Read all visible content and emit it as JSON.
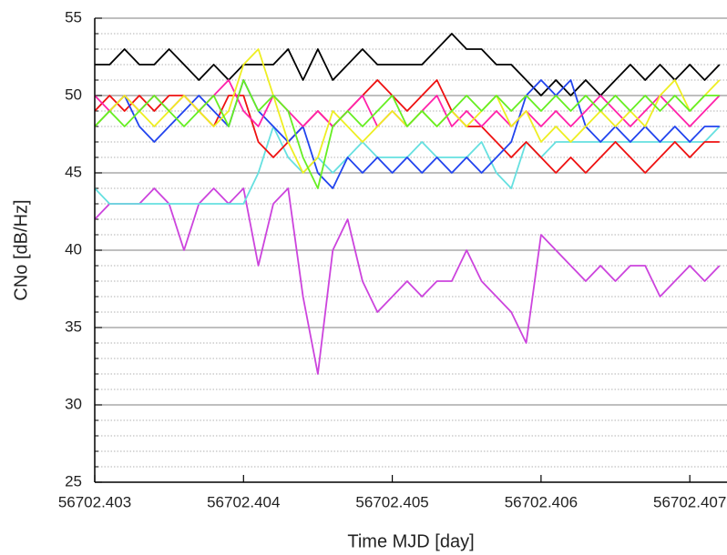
{
  "chart_data": {
    "type": "line",
    "xlabel": "Time MJD [day]",
    "ylabel": "CNo [dB/Hz]",
    "x": [
      56702.403,
      56702.4031,
      56702.4032,
      56702.4033,
      56702.4034,
      56702.4035,
      56702.4036,
      56702.4037,
      56702.4038,
      56702.4039,
      56702.404,
      56702.4041,
      56702.4042,
      56702.4043,
      56702.4044,
      56702.4045,
      56702.4046,
      56702.4047,
      56702.4048,
      56702.4049,
      56702.405,
      56702.4051,
      56702.4052,
      56702.4053,
      56702.4054,
      56702.4055,
      56702.4056,
      56702.4057,
      56702.4058,
      56702.4059,
      56702.406,
      56702.4061,
      56702.4062,
      56702.4063,
      56702.4064,
      56702.4065,
      56702.4066,
      56702.4067,
      56702.4068,
      56702.4069,
      56702.407,
      56702.4071,
      56702.4072
    ],
    "series": [
      {
        "color": "#cc44dd",
        "values": [
          42,
          43,
          43,
          43,
          44,
          43,
          40,
          43,
          44,
          43,
          44,
          39,
          43,
          44,
          37,
          32,
          40,
          42,
          38,
          36,
          37,
          38,
          37,
          38,
          38,
          40,
          38,
          37,
          36,
          34,
          41,
          40,
          39,
          38,
          39,
          38,
          39,
          39,
          37,
          38,
          39,
          38,
          39
        ]
      },
      {
        "color": "#66e0e0",
        "values": [
          44,
          43,
          43,
          43,
          43,
          43,
          43,
          43,
          43,
          43,
          43,
          45,
          48,
          46,
          45,
          46,
          45,
          46,
          47,
          46,
          46,
          46,
          47,
          46,
          46,
          46,
          47,
          45,
          44,
          47,
          46,
          47,
          47,
          47,
          47,
          47,
          47,
          47,
          47,
          47,
          47,
          47,
          48
        ]
      },
      {
        "color": "#000000",
        "values": [
          52,
          52,
          53,
          52,
          52,
          53,
          52,
          51,
          52,
          51,
          52,
          52,
          52,
          53,
          51,
          53,
          51,
          52,
          53,
          52,
          52,
          52,
          52,
          53,
          54,
          53,
          53,
          52,
          52,
          51,
          50,
          51,
          50,
          51,
          50,
          51,
          52,
          51,
          52,
          51,
          52,
          51,
          52
        ]
      },
      {
        "color": "#ee1111",
        "values": [
          49,
          50,
          49,
          50,
          49,
          50,
          50,
          49,
          48,
          50,
          50,
          47,
          46,
          47,
          48,
          49,
          48,
          49,
          50,
          51,
          50,
          49,
          50,
          51,
          49,
          48,
          48,
          47,
          46,
          47,
          46,
          45,
          46,
          45,
          46,
          47,
          46,
          45,
          46,
          47,
          46,
          47,
          47
        ]
      },
      {
        "color": "#2244ee",
        "values": [
          48,
          49,
          50,
          48,
          47,
          48,
          49,
          50,
          49,
          48,
          51,
          49,
          48,
          47,
          48,
          45,
          44,
          46,
          45,
          46,
          45,
          46,
          45,
          46,
          45,
          46,
          45,
          46,
          47,
          50,
          51,
          50,
          51,
          48,
          47,
          48,
          47,
          48,
          47,
          48,
          47,
          48,
          48
        ]
      },
      {
        "color": "#ff22aa",
        "values": [
          50,
          49,
          50,
          49,
          50,
          49,
          50,
          49,
          50,
          51,
          49,
          48,
          50,
          49,
          48,
          49,
          48,
          49,
          50,
          48,
          49,
          48,
          49,
          50,
          48,
          49,
          48,
          49,
          48,
          49,
          48,
          49,
          48,
          49,
          50,
          49,
          48,
          49,
          50,
          49,
          48,
          49,
          50
        ]
      },
      {
        "color": "#eeee22",
        "values": [
          48,
          49,
          50,
          49,
          48,
          49,
          50,
          49,
          48,
          49,
          52,
          53,
          50,
          47,
          45,
          46,
          49,
          48,
          47,
          48,
          49,
          48,
          49,
          48,
          49,
          48,
          49,
          50,
          48,
          49,
          47,
          48,
          47,
          48,
          49,
          48,
          49,
          48,
          50,
          51,
          49,
          50,
          51
        ]
      },
      {
        "color": "#66ee22",
        "values": [
          48,
          49,
          48,
          49,
          50,
          49,
          48,
          49,
          50,
          48,
          51,
          49,
          50,
          49,
          46,
          44,
          48,
          49,
          48,
          49,
          50,
          48,
          49,
          48,
          49,
          50,
          49,
          50,
          49,
          50,
          49,
          50,
          49,
          50,
          49,
          50,
          49,
          50,
          49,
          50,
          49,
          50,
          50
        ]
      }
    ],
    "xlim": [
      56702.403,
      56702.40725
    ],
    "xticks": [
      56702.403,
      56702.404,
      56702.405,
      56702.406,
      56702.407
    ],
    "ylim": [
      25,
      55
    ],
    "yticks": [
      25,
      30,
      35,
      40,
      45,
      50,
      55
    ],
    "minor_yticks": [
      26,
      27,
      28,
      29,
      31,
      32,
      33,
      34,
      36,
      37,
      38,
      39,
      41,
      42,
      43,
      44,
      46,
      47,
      48,
      49,
      51,
      52,
      53,
      54
    ],
    "grid": true
  }
}
